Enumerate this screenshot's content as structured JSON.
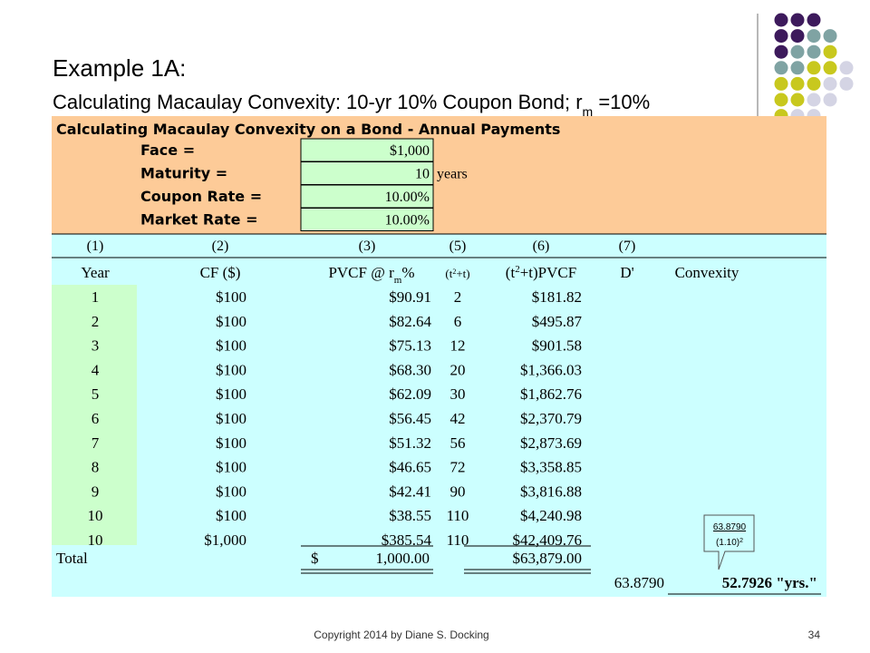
{
  "title": "Example 1A:",
  "subtitle": [
    {
      "text": "Calculating Macaulay Convexity: 10-yr 10% Coupon Bond; r"
    },
    {
      "text": "m",
      "pos": "sub"
    },
    {
      "text": " =10%"
    }
  ],
  "sheet": {
    "heading": "Calculating Macaulay Convexity on a Bond - Annual Payments",
    "inputs": [
      {
        "label": "Face =",
        "value": "$1,000"
      },
      {
        "label": "Maturity =",
        "value": "10",
        "unit": "years"
      },
      {
        "label": "Coupon Rate =",
        "value": "10.00%"
      },
      {
        "label": "Market Rate =",
        "value": "10.00%"
      }
    ],
    "column_numbers": [
      "(1)",
      "(2)",
      "(3)",
      "(5)",
      "(6)",
      "(7)"
    ],
    "headers": [
      [
        {
          "text": "Year"
        }
      ],
      [
        {
          "text": "CF ($)"
        }
      ],
      [
        {
          "text": "PVCF @ r"
        },
        {
          "text": "m",
          "pos": "sub"
        },
        {
          "text": "%"
        }
      ],
      [
        {
          "text": "(t"
        },
        {
          "text": "2",
          "pos": "sup"
        },
        {
          "text": "+t)"
        }
      ],
      [
        {
          "text": "(t"
        },
        {
          "text": "2",
          "pos": "sup"
        },
        {
          "text": "+t)PVCF"
        }
      ],
      [
        {
          "text": "D'"
        }
      ],
      [
        {
          "text": "Convexity"
        }
      ]
    ],
    "rows": [
      [
        "1",
        "$100",
        "$90.91",
        "2",
        "$181.82"
      ],
      [
        "2",
        "$100",
        "$82.64",
        "6",
        "$495.87"
      ],
      [
        "3",
        "$100",
        "$75.13",
        "12",
        "$901.58"
      ],
      [
        "4",
        "$100",
        "$68.30",
        "20",
        "$1,366.03"
      ],
      [
        "5",
        "$100",
        "$62.09",
        "30",
        "$1,862.76"
      ],
      [
        "6",
        "$100",
        "$56.45",
        "42",
        "$2,370.79"
      ],
      [
        "7",
        "$100",
        "$51.32",
        "56",
        "$2,873.69"
      ],
      [
        "8",
        "$100",
        "$46.65",
        "72",
        "$3,358.85"
      ],
      [
        "9",
        "$100",
        "$42.41",
        "90",
        "$3,816.88"
      ],
      [
        "10",
        "$100",
        "$38.55",
        "110",
        "$4,240.98"
      ],
      [
        "10",
        "$1,000",
        "$385.54",
        "110",
        "$42,409.76"
      ]
    ],
    "total": {
      "label": "Total",
      "currency": "$",
      "pvcf": "1,000.00",
      "weighted": "$63,879.00"
    },
    "result": {
      "duration": "63.8790",
      "convexity": "52.7926 \"yrs.\""
    }
  },
  "callout": {
    "numerator": "63.8790",
    "denominator": [
      {
        "text": "(1.10)"
      },
      {
        "text": "2",
        "pos": "sup"
      }
    ]
  },
  "footer": {
    "copyright": "Copyright 2014 by Diane S. Docking",
    "page": "34"
  }
}
